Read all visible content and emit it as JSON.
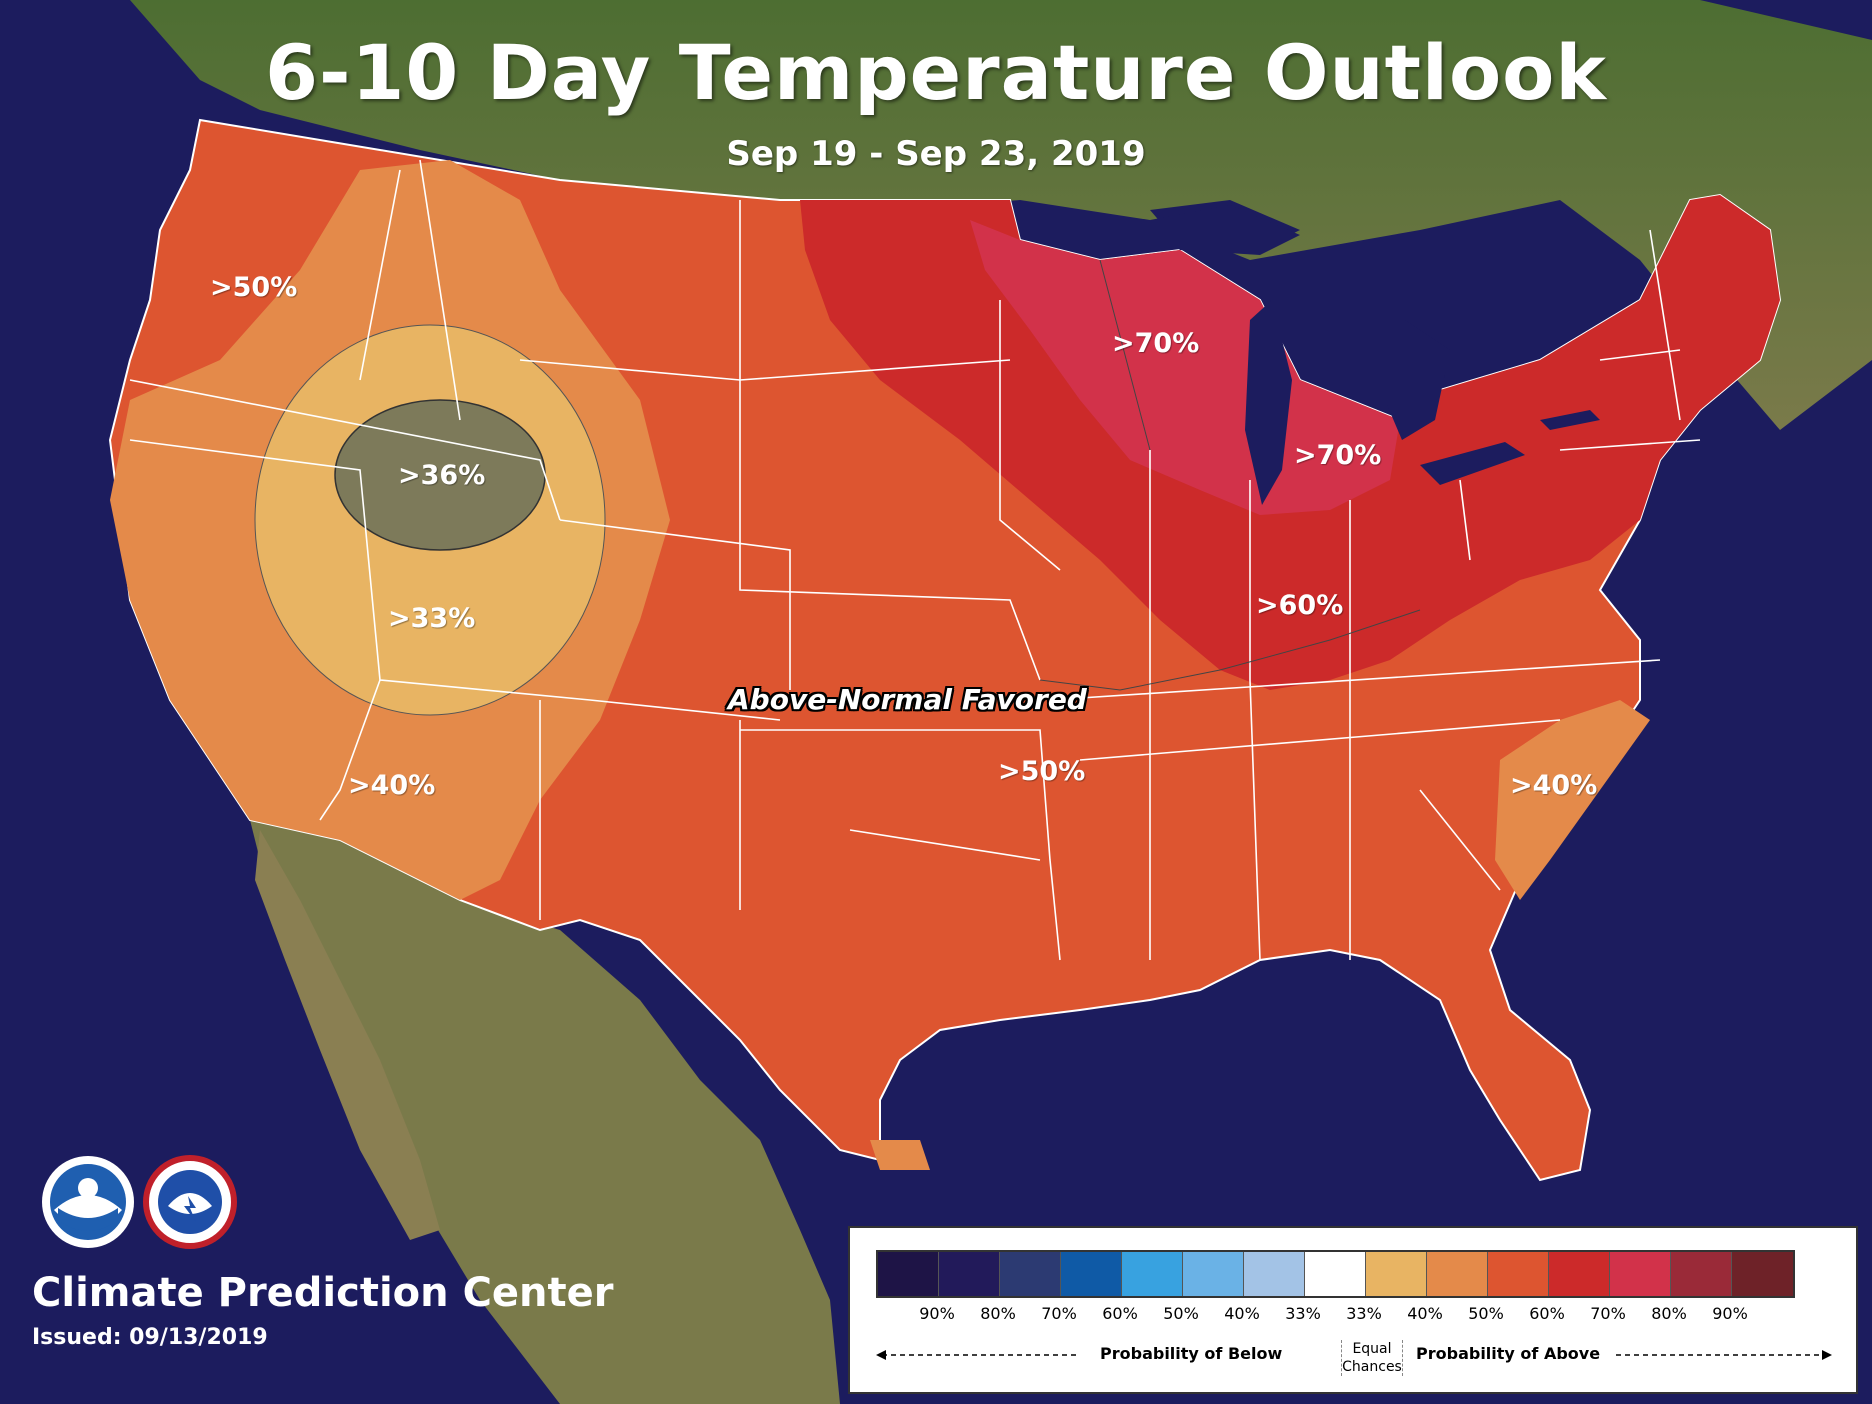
{
  "title": "6-10 Day Temperature Outlook",
  "subtitle": "Sep 19 - Sep 23, 2019",
  "center_label": "Above-Normal Favored",
  "region_labels": [
    ">50%",
    ">36%",
    ">33%",
    ">40%",
    ">70%",
    ">70%",
    ">60%",
    ">50%",
    ">40%"
  ],
  "footer": {
    "organization": "Climate Prediction Center",
    "issued": "Issued: 09/13/2019",
    "logos": [
      "noaa-logo",
      "national-weather-service-logo"
    ]
  },
  "legend": {
    "colors": [
      "#1e1446",
      "#221a5a",
      "#2c3a72",
      "#0f5aa6",
      "#38a2e0",
      "#6ab2e6",
      "#a3c3e6",
      "#ffffff",
      "#e8b463",
      "#e48a4a",
      "#dd5530",
      "#cc2a2a",
      "#d2324a",
      "#9a2a38",
      "#6e2228"
    ],
    "ticks": [
      "90%",
      "80%",
      "70%",
      "60%",
      "50%",
      "40%",
      "33%",
      "33%",
      "40%",
      "50%",
      "60%",
      "70%",
      "80%",
      "90%"
    ],
    "below_label": "Probability of Below",
    "equal_line1": "Equal",
    "equal_line2": "Chances",
    "above_label": "Probability of Above"
  },
  "colors": {
    "ocean": "#1c1c5e",
    "land": "#5e7a3a",
    "p33": "#e8b463",
    "p40": "#e48a4a",
    "p50": "#dd5530",
    "p60": "#cc2a2a",
    "p70": "#d2324a",
    "border": "#ffffff"
  }
}
